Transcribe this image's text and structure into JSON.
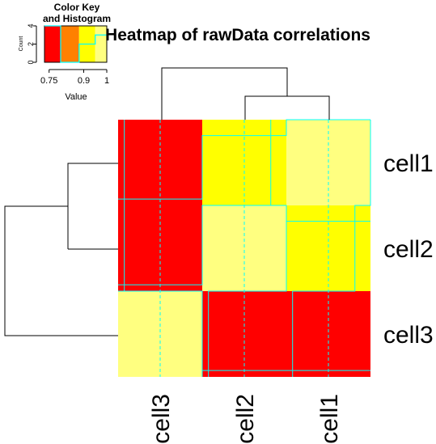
{
  "chart_data": {
    "type": "heatmap",
    "title": "Heatmap of rawData correlations",
    "row_labels": [
      "cell1",
      "cell2",
      "cell3"
    ],
    "col_labels": [
      "cell3",
      "cell2",
      "cell1"
    ],
    "matrix": [
      [
        0.75,
        0.95,
        1.0
      ],
      [
        0.75,
        1.0,
        0.95
      ],
      [
        1.0,
        0.75,
        0.75
      ]
    ],
    "color_scale": {
      "breaks": [
        0.73,
        0.8,
        0.88,
        0.95,
        1.0
      ],
      "colors": [
        "#FF0000",
        "#FF8000",
        "#FFFF00",
        "#FFFF80"
      ]
    },
    "trace_color": "#00FFFF",
    "color_key": {
      "title_line1": "Color Key",
      "title_line2": "and Histogram",
      "xlabel": "Value",
      "ylabel": "Count",
      "xticks": [
        "0.75",
        "0.9",
        "1"
      ],
      "yticks": [
        "0",
        "2",
        "4"
      ],
      "histogram_counts": [
        4,
        0,
        2,
        3
      ]
    }
  }
}
